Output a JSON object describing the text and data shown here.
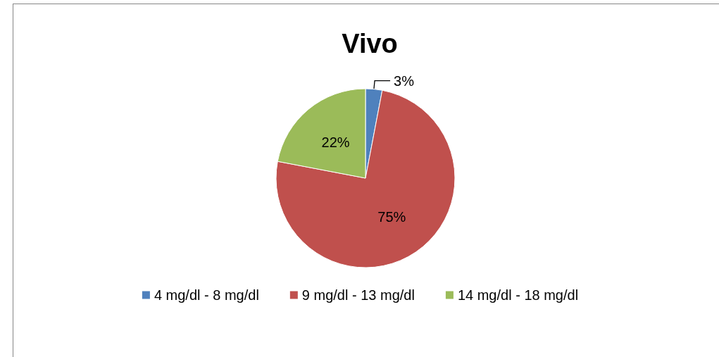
{
  "chart_data": {
    "type": "pie",
    "title": "Vivo",
    "categories": [
      "4 mg/dl - 8 mg/dl",
      "9 mg/dl - 13 mg/dl",
      "14 mg/dl - 18 mg/dl"
    ],
    "values": [
      3,
      75,
      22
    ],
    "colors": [
      "#4f81bd",
      "#c0504d",
      "#9bbb59"
    ],
    "value_labels": [
      "3%",
      "75%",
      "22%"
    ],
    "legend": "bottom"
  }
}
